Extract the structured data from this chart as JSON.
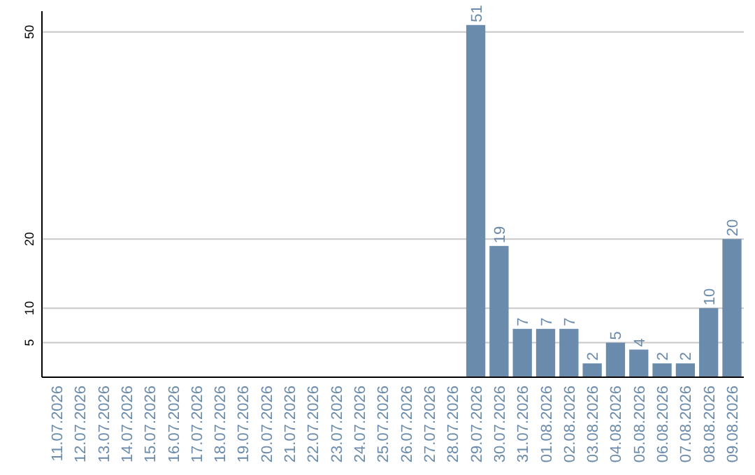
{
  "chart_data": {
    "type": "bar",
    "categories": [
      "11.07.2026",
      "12.07.2026",
      "13.07.2026",
      "14.07.2026",
      "15.07.2026",
      "16.07.2026",
      "17.07.2026",
      "18.07.2026",
      "19.07.2026",
      "20.07.2026",
      "21.07.2026",
      "22.07.2026",
      "23.07.2026",
      "24.07.2026",
      "25.07.2026",
      "26.07.2026",
      "27.07.2026",
      "28.07.2026",
      "29.07.2026",
      "30.07.2026",
      "31.07.2026",
      "01.08.2026",
      "02.08.2026",
      "03.08.2026",
      "04.08.2026",
      "05.08.2026",
      "06.08.2026",
      "07.08.2026",
      "08.08.2026",
      "09.08.2026"
    ],
    "values": [
      0,
      0,
      0,
      0,
      0,
      0,
      0,
      0,
      0,
      0,
      0,
      0,
      0,
      0,
      0,
      0,
      0,
      0,
      51,
      19,
      7,
      7,
      7,
      2,
      5,
      4,
      2,
      2,
      10,
      20
    ],
    "value_labels": [
      null,
      null,
      null,
      null,
      null,
      null,
      null,
      null,
      null,
      null,
      null,
      null,
      null,
      null,
      null,
      null,
      null,
      null,
      "51",
      "19",
      "7",
      "7",
      "7",
      "2",
      "5",
      "4",
      "2",
      "2",
      "10",
      "20"
    ],
    "color": "#6a8bab",
    "ylim": [
      0,
      53
    ],
    "yticks": [
      5,
      10,
      20,
      50
    ],
    "grid": "y"
  }
}
